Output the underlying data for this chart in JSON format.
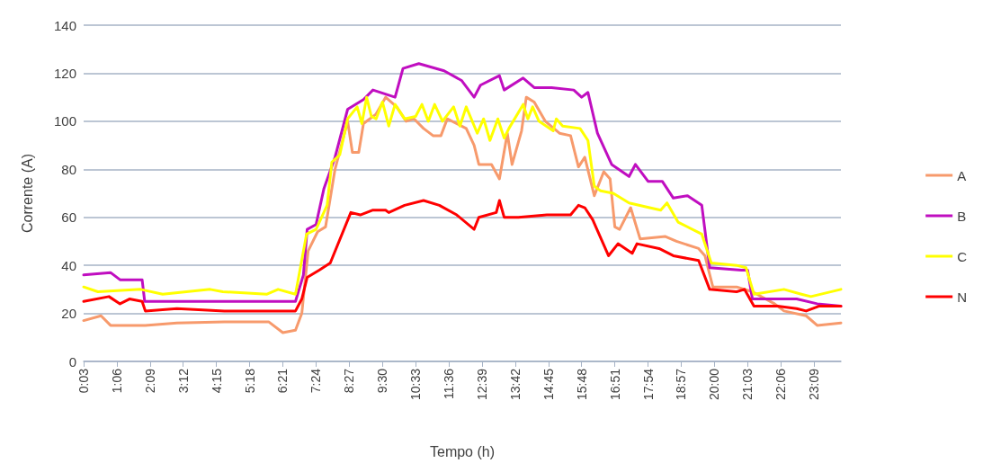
{
  "chart_data": {
    "type": "line",
    "xlabel": "Tempo (h)",
    "ylabel": "Corrente (A)",
    "xlim": [
      0.05,
      24
    ],
    "ylim": [
      0,
      140
    ],
    "yticks": [
      0,
      20,
      40,
      60,
      80,
      100,
      120,
      140
    ],
    "xticks": [
      {
        "value": 0.05,
        "label": "0:03"
      },
      {
        "value": 1.1,
        "label": "1:06"
      },
      {
        "value": 2.15,
        "label": "2:09"
      },
      {
        "value": 3.2,
        "label": "3:12"
      },
      {
        "value": 4.25,
        "label": "4:15"
      },
      {
        "value": 5.3,
        "label": "5:18"
      },
      {
        "value": 6.35,
        "label": "6:21"
      },
      {
        "value": 7.4,
        "label": "7:24"
      },
      {
        "value": 8.45,
        "label": "8:27"
      },
      {
        "value": 9.5,
        "label": "9:30"
      },
      {
        "value": 10.55,
        "label": "10:33"
      },
      {
        "value": 11.6,
        "label": "11:36"
      },
      {
        "value": 12.65,
        "label": "12:39"
      },
      {
        "value": 13.7,
        "label": "13:42"
      },
      {
        "value": 14.75,
        "label": "14:45"
      },
      {
        "value": 15.8,
        "label": "15:48"
      },
      {
        "value": 16.85,
        "label": "16:51"
      },
      {
        "value": 17.9,
        "label": "17:54"
      },
      {
        "value": 18.95,
        "label": "18:57"
      },
      {
        "value": 20,
        "label": "20:00"
      },
      {
        "value": 21.05,
        "label": "21:03"
      },
      {
        "value": 22.1,
        "label": "22:06"
      },
      {
        "value": 23.15,
        "label": "23:09"
      }
    ],
    "grid": "y",
    "legend": "right",
    "marker": "none",
    "line_style": "solid",
    "series": [
      {
        "name": "A",
        "color": "#f79a6c",
        "x": [
          0.05,
          0.6,
          0.9,
          2,
          3,
          4.5,
          5.9,
          6.35,
          6.75,
          6.95,
          7.15,
          7.45,
          7.7,
          8.0,
          8.4,
          8.55,
          8.75,
          8.9,
          9.3,
          9.6,
          9.95,
          10.25,
          10.5,
          10.8,
          11.1,
          11.35,
          11.55,
          12.15,
          12.4,
          12.55,
          12.95,
          13.2,
          13.45,
          13.6,
          13.9,
          14.05,
          14.3,
          14.65,
          15.1,
          15.45,
          15.7,
          15.9,
          16.2,
          16.5,
          16.7,
          16.85,
          17.0,
          17.35,
          17.65,
          18.45,
          18.8,
          19.5,
          19.7,
          19.95,
          20.7,
          21.2,
          21.9,
          22.2,
          22.9,
          23.25,
          24.0
        ],
        "values": [
          17,
          19,
          15,
          15,
          16,
          16.5,
          16.5,
          12,
          13,
          20,
          46,
          54,
          56,
          80,
          100,
          87,
          87,
          99,
          103,
          110,
          106,
          100,
          101,
          97,
          94,
          94,
          101,
          97,
          90,
          82,
          82,
          76,
          95,
          82,
          96,
          110,
          108,
          100,
          95,
          94,
          81,
          85,
          69,
          79,
          76,
          56,
          55,
          64,
          51,
          52,
          50,
          47,
          44,
          31,
          31,
          29,
          24,
          21,
          19,
          15,
          16
        ]
      },
      {
        "name": "B",
        "color": "#c00ec0",
        "x": [
          0.05,
          0.9,
          1.2,
          1.9,
          1.98,
          3,
          4.5,
          5.5,
          6.75,
          7.0,
          7.12,
          7.4,
          7.65,
          8.0,
          8.4,
          8.9,
          9.2,
          9.9,
          10.15,
          10.65,
          11.45,
          12.0,
          12.4,
          12.6,
          13.2,
          13.35,
          13.95,
          14.3,
          14.85,
          15.55,
          15.8,
          16.0,
          16.3,
          16.75,
          17.3,
          17.5,
          17.9,
          18.35,
          18.7,
          19.15,
          19.6,
          19.85,
          20.85,
          21.05,
          21.2,
          22.6,
          23.25,
          24.0
        ],
        "values": [
          36,
          37,
          34,
          34,
          25,
          25,
          25,
          25,
          25,
          36,
          55,
          57,
          72,
          85,
          105,
          109,
          113,
          110,
          122,
          124,
          121,
          117,
          110,
          115,
          119,
          113,
          118,
          114,
          114,
          113,
          110,
          112,
          95,
          82,
          77,
          82,
          75,
          75,
          68,
          69,
          65,
          39,
          38,
          38,
          26,
          26,
          24,
          23
        ]
      },
      {
        "name": "C",
        "color": "#ffff00",
        "x": [
          0.05,
          0.5,
          1.85,
          2.55,
          4.05,
          4.45,
          5.85,
          6.2,
          6.75,
          7.1,
          7.4,
          7.75,
          7.9,
          8.15,
          8.4,
          8.7,
          8.85,
          9.0,
          9.15,
          9.3,
          9.5,
          9.7,
          9.9,
          10.2,
          10.55,
          10.75,
          10.95,
          11.15,
          11.4,
          11.75,
          11.95,
          12.15,
          12.5,
          12.7,
          12.9,
          13.15,
          13.35,
          13.5,
          13.95,
          14.1,
          14.25,
          14.45,
          14.9,
          15.0,
          15.2,
          15.75,
          16.0,
          16.2,
          16.4,
          16.8,
          17.3,
          17.95,
          18.3,
          18.5,
          18.85,
          19.6,
          19.9,
          20.7,
          21.0,
          21.25,
          22.2,
          22.75,
          23.05,
          24.0
        ],
        "values": [
          31,
          29,
          30,
          28,
          30,
          29,
          28,
          30,
          28,
          53,
          55,
          65,
          83,
          86,
          101,
          106,
          99,
          110,
          102,
          101,
          108,
          98,
          107,
          101,
          102,
          107,
          100,
          107,
          100,
          106,
          98,
          106,
          95,
          101,
          92,
          101,
          93,
          97,
          107,
          101,
          106,
          100,
          96,
          101,
          98,
          97,
          92,
          73,
          71,
          70,
          66,
          64,
          63,
          66,
          58,
          53,
          41,
          40,
          39,
          28,
          30,
          28,
          27,
          30
        ]
      },
      {
        "name": "N",
        "color": "#ff0000",
        "x": [
          0.05,
          0.85,
          1.2,
          1.5,
          1.9,
          2.0,
          3,
          4.5,
          6.0,
          6.75,
          6.95,
          7.12,
          7.5,
          7.85,
          8.5,
          8.8,
          9.2,
          9.6,
          9.7,
          10.2,
          10.8,
          11.3,
          11.85,
          12.4,
          12.55,
          13.1,
          13.2,
          13.35,
          13.8,
          14.7,
          15.45,
          15.7,
          15.9,
          16.15,
          16.65,
          16.95,
          17.4,
          17.55,
          18.25,
          18.7,
          19.5,
          19.85,
          20.7,
          20.95,
          21.25,
          22.0,
          22.6,
          22.9,
          23.3,
          24.0
        ],
        "values": [
          25,
          27,
          24,
          26,
          25,
          21,
          22,
          21,
          21,
          21,
          26,
          35,
          38,
          41,
          62,
          61,
          63,
          63,
          62,
          65,
          67,
          65,
          61,
          55,
          60,
          62,
          67,
          60,
          60,
          61,
          61,
          65,
          64,
          59,
          44,
          49,
          45,
          49,
          47,
          44,
          42,
          30,
          29,
          30,
          23,
          23,
          22,
          21,
          23,
          23
        ]
      }
    ]
  }
}
